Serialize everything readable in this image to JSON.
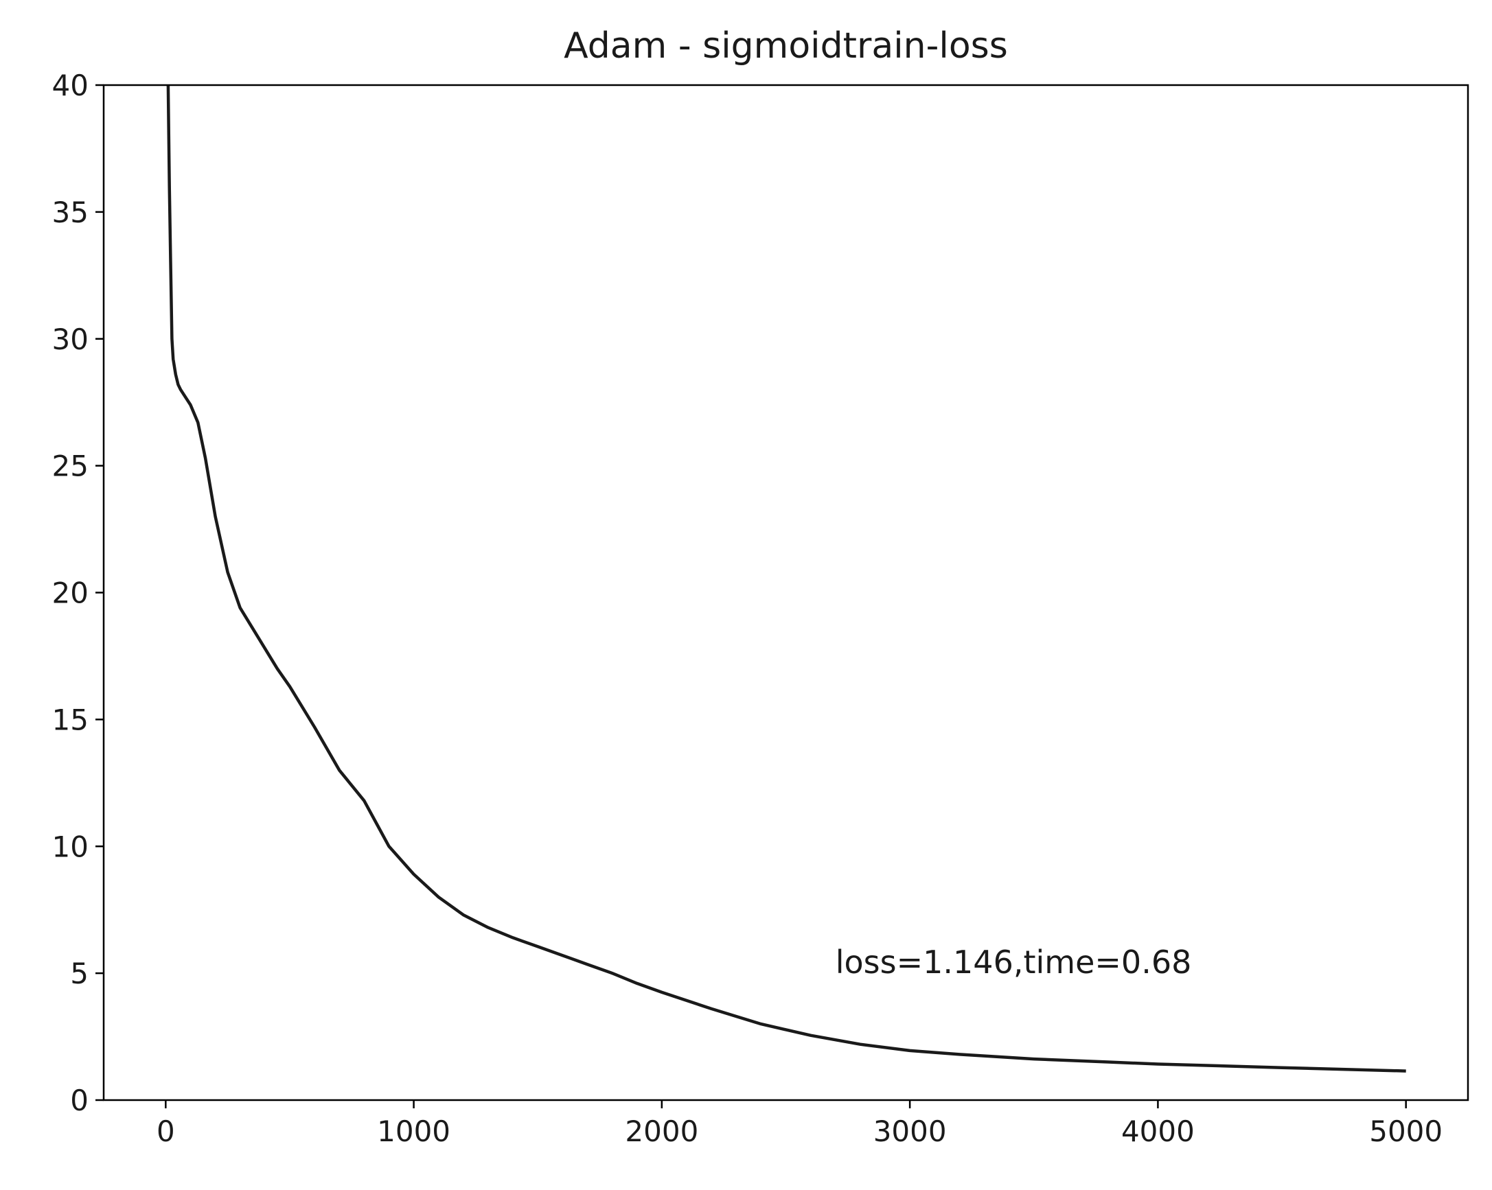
{
  "chart_data": {
    "type": "line",
    "title": "Adam - sigmoidtrain-loss",
    "xlabel": "",
    "ylabel": "",
    "xlim": [
      -250,
      5250
    ],
    "ylim": [
      0,
      40
    ],
    "grid": false,
    "xticks": [
      0,
      1000,
      2000,
      3000,
      4000,
      5000
    ],
    "yticks": [
      0,
      5,
      10,
      15,
      20,
      25,
      30,
      35,
      40
    ],
    "annotation": {
      "text": "loss=1.146,time=0.68",
      "x": 2700,
      "y": 5
    },
    "series": [
      {
        "color": "#1a1a1a",
        "x": [
          10,
          15,
          20,
          25,
          30,
          40,
          50,
          60,
          80,
          100,
          130,
          160,
          200,
          250,
          300,
          350,
          400,
          450,
          500,
          600,
          700,
          800,
          850,
          900,
          1000,
          1100,
          1200,
          1300,
          1400,
          1500,
          1600,
          1700,
          1800,
          1900,
          2000,
          2200,
          2300,
          2400,
          2600,
          2800,
          3000,
          3200,
          3500,
          3800,
          4000,
          4500,
          5000
        ],
        "y": [
          40,
          36,
          33,
          30,
          29.2,
          28.6,
          28.2,
          28.0,
          27.7,
          27.4,
          26.7,
          25.3,
          23.0,
          20.8,
          19.4,
          18.6,
          17.8,
          17.0,
          16.3,
          14.7,
          13.0,
          11.8,
          10.9,
          10.0,
          8.9,
          8.0,
          7.3,
          6.8,
          6.4,
          6.05,
          5.7,
          5.35,
          5.0,
          4.6,
          4.25,
          3.6,
          3.3,
          3.0,
          2.55,
          2.2,
          1.95,
          1.8,
          1.62,
          1.5,
          1.42,
          1.28,
          1.146
        ]
      }
    ]
  }
}
